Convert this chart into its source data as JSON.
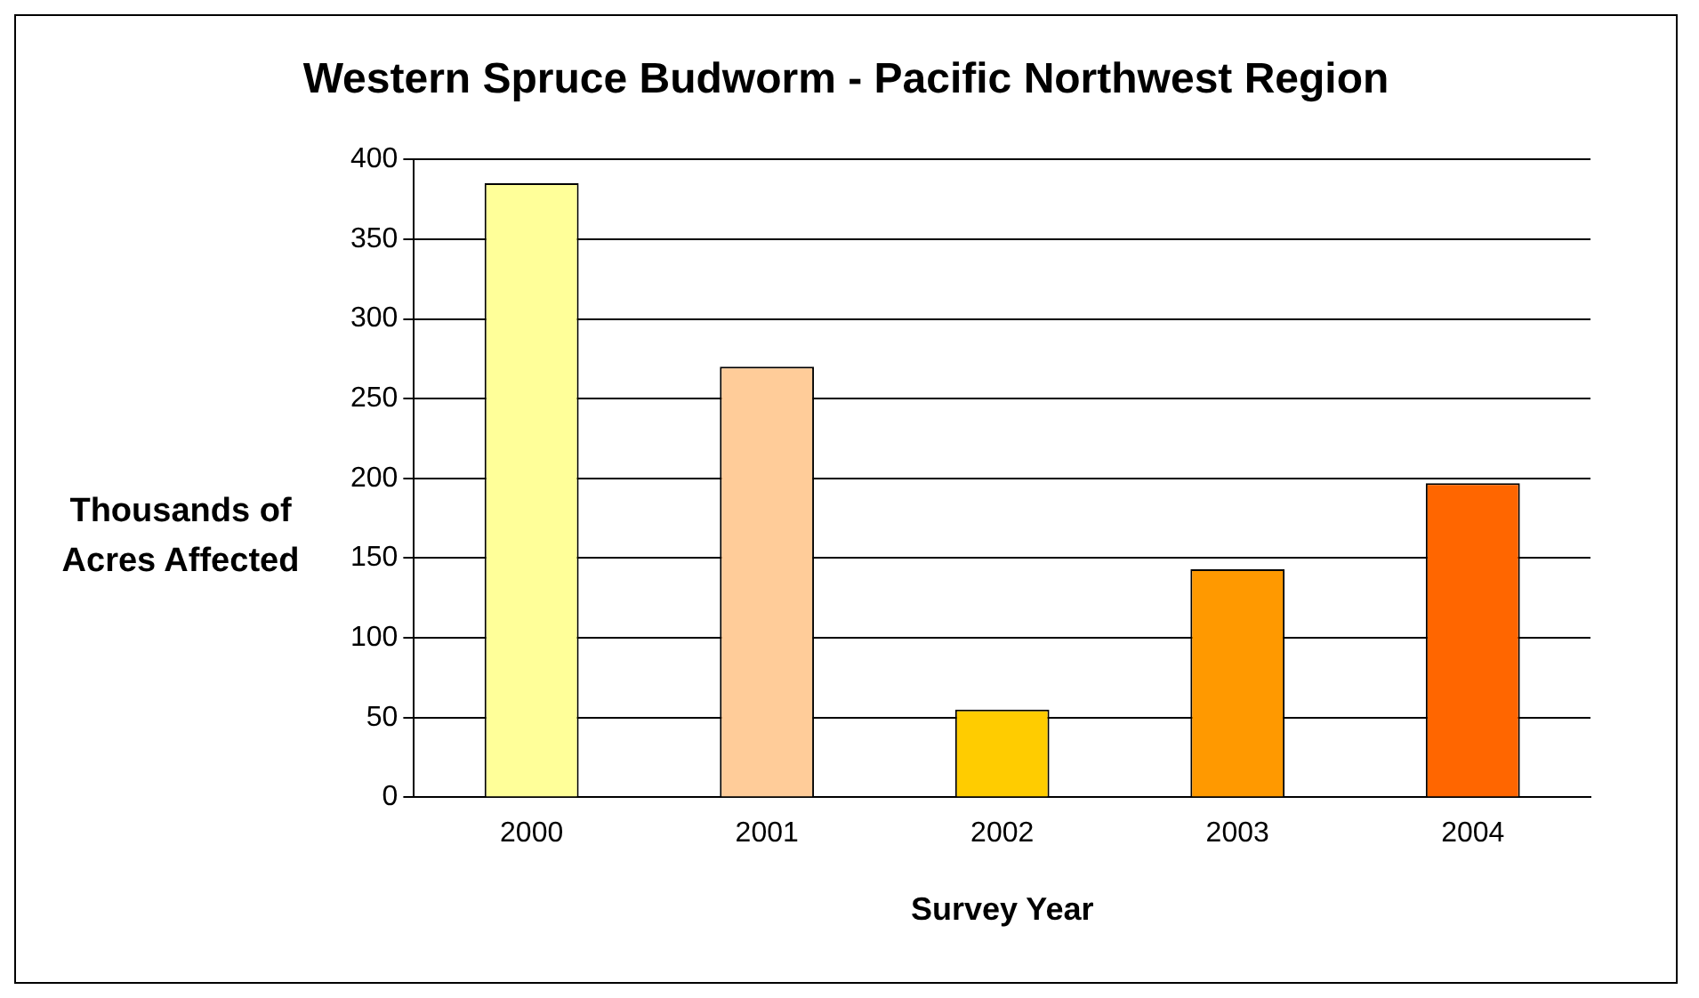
{
  "chart_data": {
    "type": "bar",
    "title": "Western Spruce Budworm - Pacific Northwest Region",
    "xlabel": "Survey Year",
    "ylabel": "Thousands of Acres Affected",
    "categories": [
      "2000",
      "2001",
      "2002",
      "2003",
      "2004"
    ],
    "values": [
      385,
      270,
      55,
      143,
      197
    ],
    "colors": [
      "#ffff99",
      "#ffcc99",
      "#ffcc00",
      "#ff9900",
      "#ff6600"
    ],
    "ylim": [
      0,
      400
    ],
    "yticks": [
      0,
      50,
      100,
      150,
      200,
      250,
      300,
      350,
      400
    ],
    "grid": "y",
    "legend": false
  }
}
